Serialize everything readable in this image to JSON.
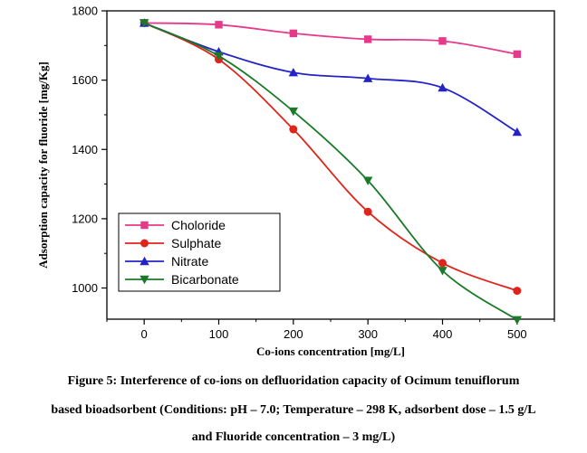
{
  "chart_data": {
    "type": "line",
    "xlabel": "Co-ions concentration [mg/L]",
    "ylabel": "Adsorption capacity for fluoride [mg/Kg]",
    "x": [
      0,
      100,
      200,
      300,
      400,
      500
    ],
    "xticks": [
      "0",
      "100",
      "200",
      "300",
      "400",
      "500"
    ],
    "yticks": [
      "1000",
      "1200",
      "1400",
      "1600",
      "1800"
    ],
    "xlim": [
      -50,
      550
    ],
    "ylim": [
      910,
      1800
    ],
    "grid": false,
    "legend_position": "bottom-left",
    "series": [
      {
        "name": "Choloride",
        "color": "#e8388a",
        "marker": "square",
        "values": [
          1765,
          1760,
          1735,
          1718,
          1713,
          1675
        ]
      },
      {
        "name": "Sulphate",
        "color": "#e0241b",
        "marker": "circle",
        "values": [
          1765,
          1660,
          1458,
          1220,
          1072,
          992
        ]
      },
      {
        "name": "Nitrate",
        "color": "#2323c8",
        "marker": "triangle-up",
        "values": [
          1765,
          1682,
          1622,
          1605,
          1578,
          1450
        ]
      },
      {
        "name": "Bicarbonate",
        "color": "#1a7a2a",
        "marker": "triangle-down",
        "values": [
          1765,
          1670,
          1510,
          1310,
          1050,
          908
        ]
      }
    ]
  },
  "caption": {
    "line1": "Figure 5: Interference of co-ions on defluoridation capacity of Ocimum tenuiflorum",
    "line2": "based bioadsorbent (Conditions: pH – 7.0; Temperature – 298 K, adsorbent dose – 1.5 g/L",
    "line3": "and Fluoride concentration – 3 mg/L)"
  }
}
